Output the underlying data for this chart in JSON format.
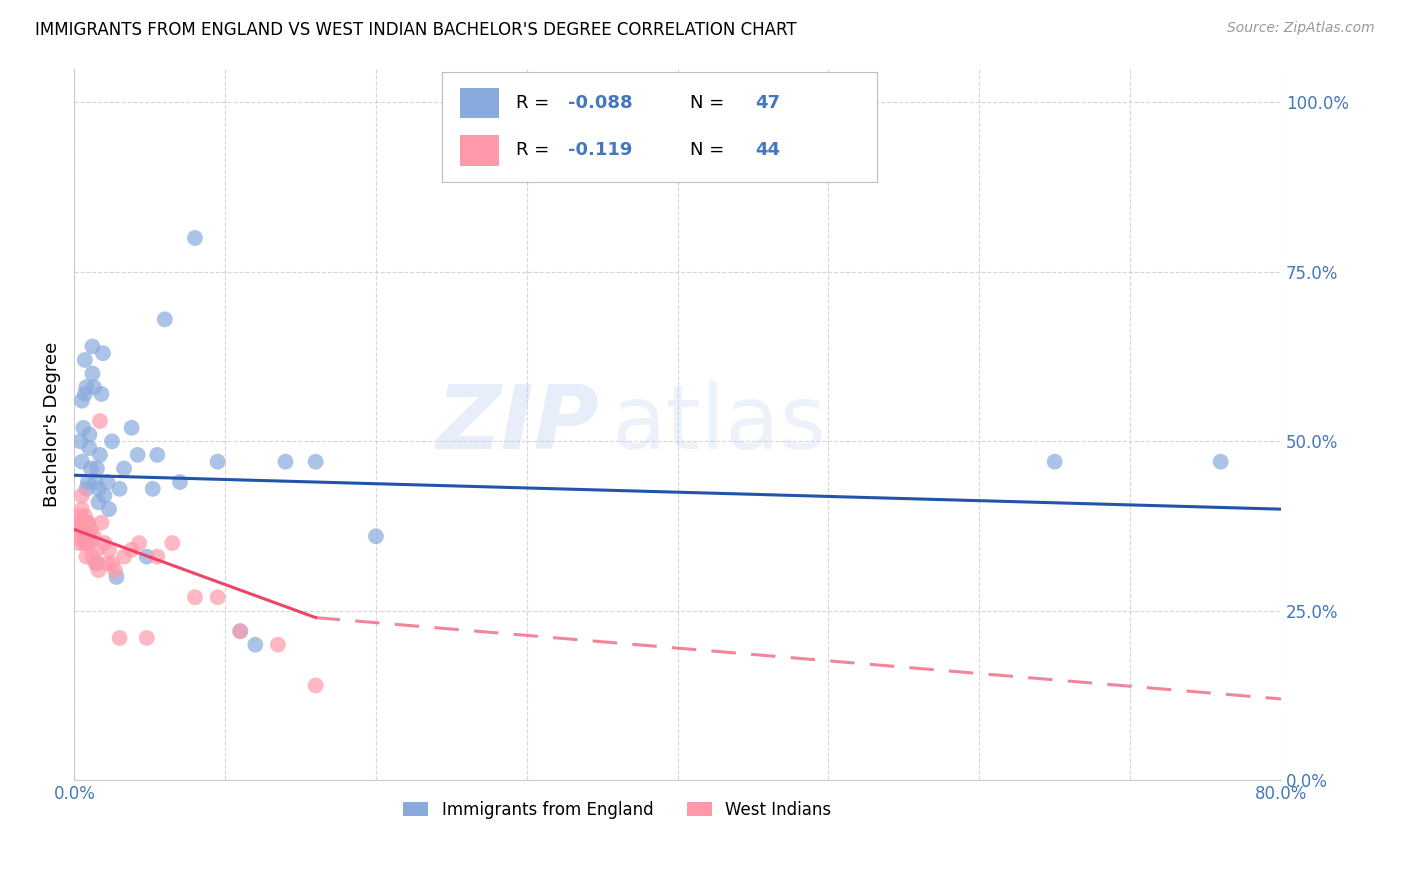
{
  "title": "IMMIGRANTS FROM ENGLAND VS WEST INDIAN BACHELOR'S DEGREE CORRELATION CHART",
  "source": "Source: ZipAtlas.com",
  "ylabel": "Bachelor's Degree",
  "legend_england": "Immigrants from England",
  "legend_westindians": "West Indians",
  "R_england": -0.088,
  "N_england": 47,
  "R_westindians": -0.119,
  "N_westindians": 44,
  "color_england": "#88AADD",
  "color_westindians": "#FF99AA",
  "color_trendline_england": "#2255AA",
  "color_trendline_westindians": "#EE4466",
  "color_right_axis": "#4477BB",
  "color_grid": "#CCCCCC",
  "xlim": [
    0.0,
    80.0
  ],
  "ylim": [
    0.0,
    105.0
  ],
  "ytick_vals": [
    0.0,
    25.0,
    50.0,
    75.0,
    100.0
  ],
  "ytick_labels": [
    "0.0%",
    "25.0%",
    "50.0%",
    "75.0%",
    "100.0%"
  ],
  "xtick_vals": [
    0.0,
    10.0,
    20.0,
    30.0,
    40.0,
    50.0,
    60.0,
    70.0,
    80.0
  ],
  "xtick_labels_show": [
    "0.0%",
    "",
    "",
    "",
    "",
    "",
    "",
    "",
    "80.0%"
  ],
  "england_x": [
    0.4,
    0.5,
    0.5,
    0.6,
    0.7,
    0.7,
    0.8,
    0.8,
    0.9,
    0.9,
    1.0,
    1.0,
    1.1,
    1.2,
    1.2,
    1.3,
    1.4,
    1.5,
    1.5,
    1.6,
    1.6,
    1.7,
    1.8,
    1.9,
    2.0,
    2.2,
    2.3,
    2.5,
    2.8,
    3.0,
    3.3,
    3.8,
    4.2,
    4.8,
    5.5,
    6.0,
    7.0,
    8.0,
    9.5,
    11.0,
    12.0,
    14.0,
    16.0,
    20.0,
    65.0,
    76.0,
    5.2
  ],
  "england_y": [
    50.0,
    47.0,
    56.0,
    52.0,
    57.0,
    62.0,
    58.0,
    43.0,
    44.0,
    38.0,
    49.0,
    51.0,
    46.0,
    60.0,
    64.0,
    58.0,
    44.0,
    46.0,
    32.0,
    41.0,
    43.0,
    48.0,
    57.0,
    63.0,
    42.0,
    44.0,
    40.0,
    50.0,
    30.0,
    43.0,
    46.0,
    52.0,
    48.0,
    33.0,
    48.0,
    68.0,
    44.0,
    80.0,
    47.0,
    22.0,
    20.0,
    47.0,
    47.0,
    36.0,
    47.0,
    47.0,
    43.0
  ],
  "westindians_x": [
    0.2,
    0.3,
    0.3,
    0.4,
    0.4,
    0.5,
    0.5,
    0.5,
    0.6,
    0.6,
    0.7,
    0.7,
    0.8,
    0.8,
    0.8,
    0.9,
    0.9,
    1.0,
    1.0,
    1.1,
    1.2,
    1.3,
    1.4,
    1.5,
    1.6,
    1.7,
    1.8,
    2.0,
    2.2,
    2.3,
    2.5,
    2.7,
    3.0,
    3.3,
    3.8,
    4.3,
    4.8,
    5.5,
    6.5,
    8.0,
    9.5,
    11.0,
    13.5,
    16.0
  ],
  "westindians_y": [
    38.0,
    37.0,
    35.0,
    39.0,
    36.0,
    42.0,
    40.0,
    38.0,
    37.0,
    35.0,
    39.0,
    36.0,
    38.0,
    35.0,
    33.0,
    38.0,
    37.0,
    36.0,
    35.0,
    37.0,
    33.0,
    36.0,
    32.0,
    34.0,
    31.0,
    53.0,
    38.0,
    35.0,
    32.0,
    34.0,
    32.0,
    31.0,
    21.0,
    33.0,
    34.0,
    35.0,
    21.0,
    33.0,
    35.0,
    27.0,
    27.0,
    22.0,
    20.0,
    14.0
  ]
}
